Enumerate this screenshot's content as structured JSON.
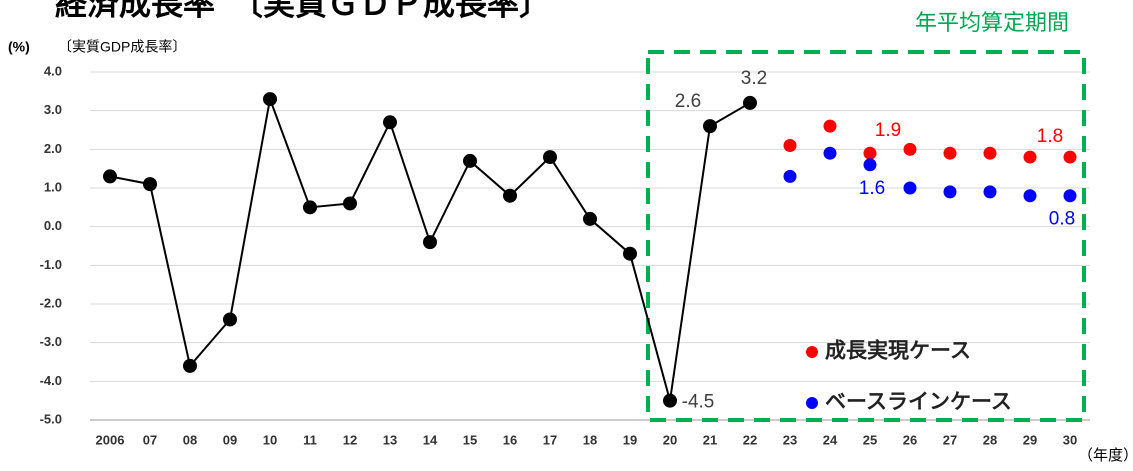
{
  "chart_data": {
    "type": "line",
    "title": "経済成長率　〔実質ＧＤＰ成長率〕",
    "subtitle": "〔実質GDP成長率〕",
    "y_axis_label": "(%)",
    "x_axis_label": "（年度）",
    "annotation": "年平均算定期間",
    "categories": [
      "2006",
      "07",
      "08",
      "09",
      "10",
      "11",
      "12",
      "13",
      "14",
      "15",
      "16",
      "17",
      "18",
      "19",
      "20",
      "21",
      "22",
      "23",
      "24",
      "25",
      "26",
      "27",
      "28",
      "29",
      "30"
    ],
    "series": [
      {
        "color": "#000000",
        "lines": true,
        "values": [
          1.3,
          1.1,
          -3.6,
          -2.4,
          3.3,
          0.5,
          0.6,
          2.7,
          -0.4,
          1.7,
          0.8,
          1.8,
          0.2,
          -0.7,
          -4.5,
          2.6,
          3.2,
          null,
          null,
          null,
          null,
          null,
          null,
          null,
          null
        ],
        "value_labels": [
          null,
          null,
          null,
          null,
          null,
          null,
          null,
          null,
          null,
          null,
          null,
          null,
          null,
          null,
          "-4.5",
          "2.6",
          "3.2",
          null,
          null,
          null,
          null,
          null,
          null,
          null,
          null
        ]
      },
      {
        "name": "成長実現ケース",
        "color": "#ff0000",
        "lines": false,
        "values": [
          null,
          null,
          null,
          null,
          null,
          null,
          null,
          null,
          null,
          null,
          null,
          null,
          null,
          null,
          null,
          null,
          null,
          2.1,
          2.6,
          1.9,
          2.0,
          1.9,
          1.9,
          1.8,
          1.8
        ],
        "value_labels": [
          null,
          null,
          null,
          null,
          null,
          null,
          null,
          null,
          null,
          null,
          null,
          null,
          null,
          null,
          null,
          null,
          null,
          null,
          null,
          "1.9",
          null,
          null,
          null,
          null,
          "1.8"
        ]
      },
      {
        "name": "ベースラインケース",
        "color": "#0000ff",
        "lines": false,
        "values": [
          null,
          null,
          null,
          null,
          null,
          null,
          null,
          null,
          null,
          null,
          null,
          null,
          null,
          null,
          null,
          null,
          null,
          1.3,
          1.9,
          1.6,
          1.0,
          0.9,
          0.9,
          0.8,
          0.8
        ],
        "value_labels": [
          null,
          null,
          null,
          null,
          null,
          null,
          null,
          null,
          null,
          null,
          null,
          null,
          null,
          null,
          null,
          null,
          null,
          null,
          null,
          "1.6",
          null,
          null,
          null,
          null,
          "0.8"
        ]
      }
    ],
    "ylim": [
      -5,
      4
    ],
    "yticks": [
      {
        "value": 4,
        "label": "4.0"
      },
      {
        "value": 3,
        "label": "3.0"
      },
      {
        "value": 2,
        "label": "2.0"
      },
      {
        "value": 1,
        "label": "1.0"
      },
      {
        "value": 0,
        "label": "0.0"
      },
      {
        "value": -1,
        "label": "-1.0"
      },
      {
        "value": -2,
        "label": "-2.0"
      },
      {
        "value": -3,
        "label": "-3.0"
      },
      {
        "value": -4,
        "label": "-4.0"
      },
      {
        "value": -5,
        "label": "-5.0"
      }
    ],
    "grid": true,
    "legend": "lower right"
  }
}
